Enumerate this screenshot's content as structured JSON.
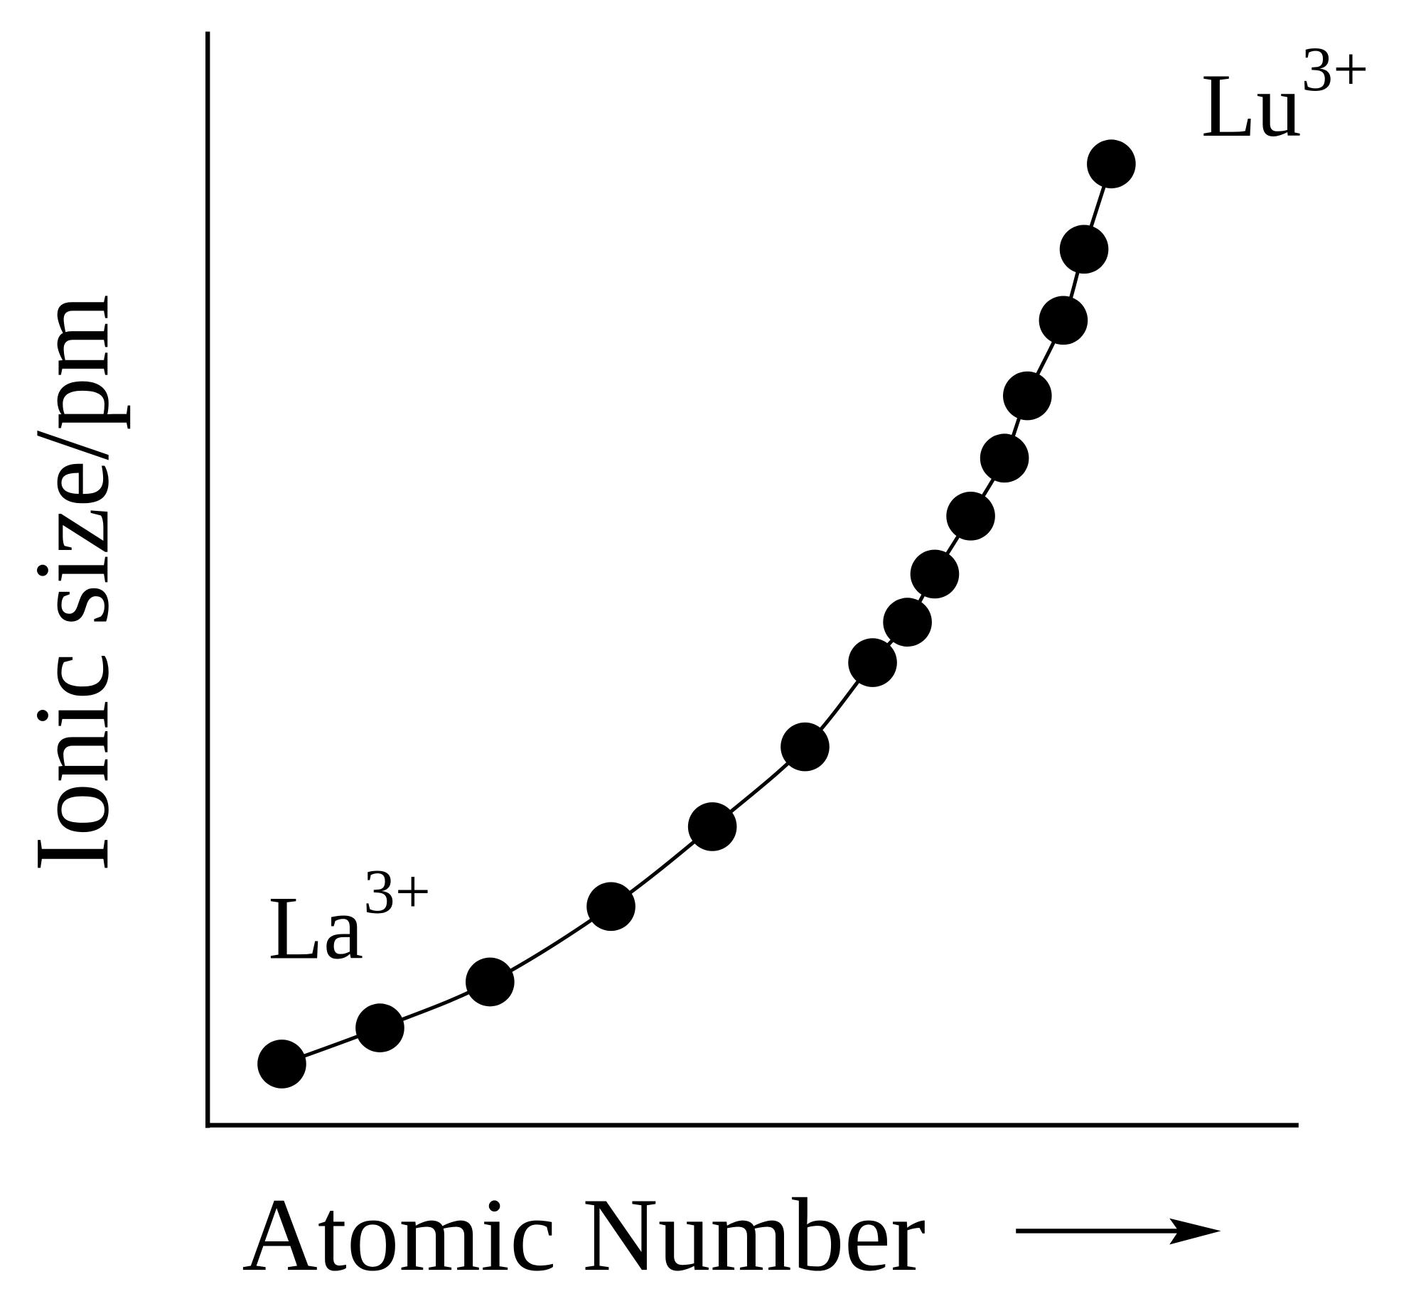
{
  "chart_data": {
    "type": "line",
    "y_label": "Ionic size/pm",
    "x_label": "Atomic Number",
    "annotations": [
      {
        "text": "La",
        "superscript": "3+"
      },
      {
        "text": "Lu",
        "superscript": "3+"
      }
    ],
    "x": [
      6.8,
      15.8,
      25.9,
      37.0,
      46.3,
      54.8,
      61.0,
      64.2,
      66.7,
      70.0,
      73.1,
      75.2,
      78.5,
      80.4,
      82.9
    ],
    "series": [
      {
        "color": "#000000",
        "values": [
          5.6,
          8.9,
          13.1,
          20.0,
          27.3,
          34.6,
          42.3,
          46.0,
          50.4,
          55.7,
          61.0,
          66.7,
          73.6,
          80.1,
          87.9
        ]
      }
    ],
    "xlim": [
      0,
      100
    ],
    "ylim": [
      0,
      100
    ]
  }
}
